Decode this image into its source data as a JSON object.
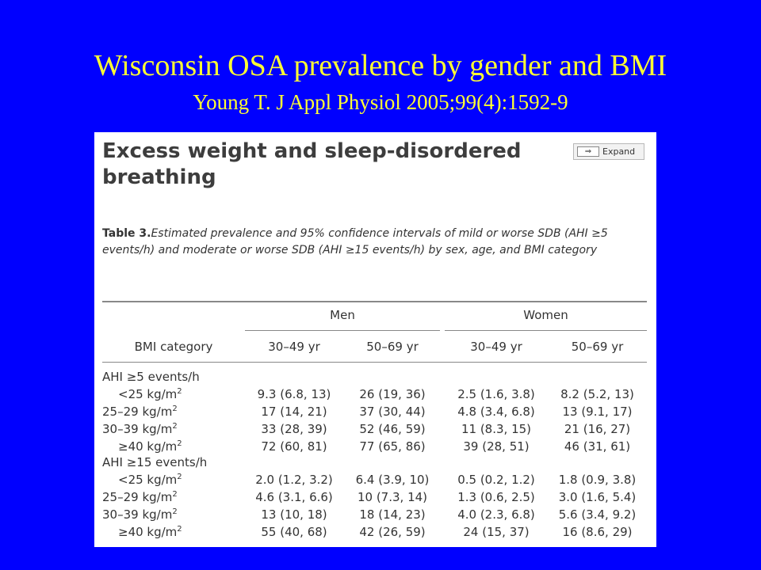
{
  "slide": {
    "title": "Wisconsin OSA prevalence by gender and BMI",
    "subtitle": "Young T. J Appl Physiol 2005;99(4):1592-9"
  },
  "panel": {
    "heading": "Excess weight and sleep-disordered breathing",
    "expand_label": "Expand",
    "expand_icon": "arrow-right-icon",
    "caption_lead": "Table 3.",
    "caption_text": "Estimated prevalence and 95% confidence intervals of mild or worse SDB (AHI ≥5 events/h) and moderate or worse SDB (AHI ≥15 events/h) by sex, age, and BMI category"
  },
  "table": {
    "row_header": "BMI category",
    "groups": [
      "Men",
      "Women"
    ],
    "columns": [
      "30–49 yr",
      "50–69 yr",
      "30–49 yr",
      "50–69 yr"
    ],
    "sections": [
      {
        "label": "AHI ≥5 events/h",
        "rows": [
          {
            "bmi": "<25 kg/m",
            "exp": "2",
            "values": [
              "9.3 (6.8, 13)",
              "26 (19, 36)",
              "2.5 (1.6, 3.8)",
              "8.2 (5.2, 13)"
            ]
          },
          {
            "bmi": "25–29 kg/m",
            "exp": "2",
            "values": [
              "17 (14, 21)",
              "37 (30, 44)",
              "4.8 (3.4, 6.8)",
              "13 (9.1, 17)"
            ]
          },
          {
            "bmi": "30–39 kg/m",
            "exp": "2",
            "values": [
              "33 (28, 39)",
              "52 (46, 59)",
              "11 (8.3, 15)",
              "21 (16, 27)"
            ]
          },
          {
            "bmi": "≥40 kg/m",
            "exp": "2",
            "values": [
              "72 (60, 81)",
              "77 (65, 86)",
              "39 (28, 51)",
              "46 (31, 61)"
            ]
          }
        ]
      },
      {
        "label": "AHI ≥15 events/h",
        "rows": [
          {
            "bmi": "<25 kg/m",
            "exp": "2",
            "values": [
              "2.0 (1.2, 3.2)",
              "6.4 (3.9, 10)",
              "0.5 (0.2, 1.2)",
              "1.8 (0.9, 3.8)"
            ]
          },
          {
            "bmi": "25–29 kg/m",
            "exp": "2",
            "values": [
              "4.6 (3.1, 6.6)",
              "10 (7.3, 14)",
              "1.3 (0.6, 2.5)",
              "3.0 (1.6, 5.4)"
            ]
          },
          {
            "bmi": "30–39 kg/m",
            "exp": "2",
            "values": [
              "13 (10, 18)",
              "18 (14, 23)",
              "4.0 (2.3, 6.8)",
              "5.6 (3.4, 9.2)"
            ]
          },
          {
            "bmi": "≥40 kg/m",
            "exp": "2",
            "values": [
              "55 (40, 68)",
              "42 (26, 59)",
              "24 (15, 37)",
              "16 (8.6, 29)"
            ]
          }
        ]
      }
    ]
  }
}
